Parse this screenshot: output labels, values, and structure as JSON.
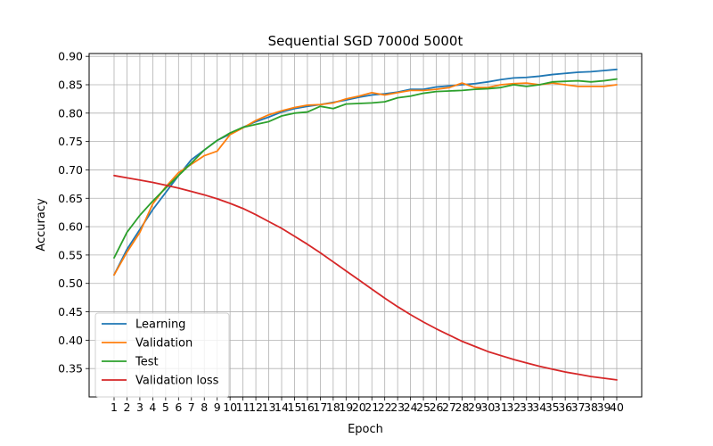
{
  "chart_data": {
    "type": "line",
    "title": "Sequential SGD 7000d 5000t",
    "xlabel": "Epoch",
    "ylabel": "Accuracy",
    "x": [
      1,
      2,
      3,
      4,
      5,
      6,
      7,
      8,
      9,
      10,
      11,
      12,
      13,
      14,
      15,
      16,
      17,
      18,
      19,
      20,
      21,
      22,
      23,
      24,
      25,
      26,
      27,
      28,
      29,
      30,
      31,
      32,
      33,
      34,
      35,
      36,
      37,
      38,
      39,
      40
    ],
    "x_ticks": [
      "1",
      "2",
      "3",
      "4",
      "5",
      "6",
      "7",
      "8",
      "9",
      "10",
      "11",
      "12",
      "13",
      "14",
      "15",
      "16",
      "17",
      "18",
      "19",
      "20",
      "21",
      "22",
      "23",
      "24",
      "25",
      "26",
      "27",
      "28",
      "29",
      "30",
      "31",
      "32",
      "33",
      "34",
      "35",
      "36",
      "37",
      "38",
      "39",
      "40"
    ],
    "y_ticks": [
      "0.35",
      "0.40",
      "0.45",
      "0.50",
      "0.55",
      "0.60",
      "0.65",
      "0.70",
      "0.75",
      "0.80",
      "0.85",
      "0.90"
    ],
    "ylim": [
      0.3,
      0.905
    ],
    "grid": true,
    "legend_position": "lower-left",
    "series": [
      {
        "name": "Learning",
        "color": "#1f77b4",
        "values": [
          0.515,
          0.56,
          0.595,
          0.63,
          0.66,
          0.69,
          0.718,
          0.735,
          0.752,
          0.763,
          0.775,
          0.785,
          0.793,
          0.802,
          0.808,
          0.812,
          0.815,
          0.819,
          0.823,
          0.828,
          0.832,
          0.834,
          0.837,
          0.842,
          0.842,
          0.846,
          0.848,
          0.85,
          0.852,
          0.855,
          0.859,
          0.862,
          0.863,
          0.865,
          0.868,
          0.87,
          0.872,
          0.873,
          0.875,
          0.877
        ]
      },
      {
        "name": "Validation",
        "color": "#ff7f0e",
        "values": [
          0.515,
          0.555,
          0.59,
          0.64,
          0.67,
          0.695,
          0.71,
          0.725,
          0.733,
          0.762,
          0.774,
          0.787,
          0.797,
          0.804,
          0.81,
          0.814,
          0.815,
          0.818,
          0.825,
          0.83,
          0.836,
          0.832,
          0.836,
          0.84,
          0.84,
          0.842,
          0.845,
          0.853,
          0.845,
          0.845,
          0.85,
          0.852,
          0.853,
          0.85,
          0.853,
          0.85,
          0.847,
          0.847,
          0.847,
          0.85
        ]
      },
      {
        "name": "Test",
        "color": "#2ca02c",
        "values": [
          0.545,
          0.59,
          0.62,
          0.645,
          0.668,
          0.69,
          0.712,
          0.735,
          0.752,
          0.765,
          0.775,
          0.78,
          0.785,
          0.795,
          0.8,
          0.802,
          0.812,
          0.808,
          0.816,
          0.817,
          0.818,
          0.82,
          0.827,
          0.83,
          0.835,
          0.838,
          0.839,
          0.84,
          0.842,
          0.843,
          0.845,
          0.85,
          0.847,
          0.85,
          0.855,
          0.856,
          0.857,
          0.855,
          0.857,
          0.86
        ]
      },
      {
        "name": "Validation loss",
        "color": "#d62728",
        "values": [
          0.69,
          0.686,
          0.682,
          0.678,
          0.673,
          0.668,
          0.662,
          0.656,
          0.649,
          0.641,
          0.632,
          0.621,
          0.609,
          0.597,
          0.583,
          0.569,
          0.554,
          0.538,
          0.522,
          0.506,
          0.49,
          0.474,
          0.459,
          0.445,
          0.432,
          0.42,
          0.409,
          0.398,
          0.389,
          0.38,
          0.373,
          0.366,
          0.36,
          0.354,
          0.349,
          0.344,
          0.34,
          0.336,
          0.333,
          0.33
        ]
      }
    ]
  }
}
